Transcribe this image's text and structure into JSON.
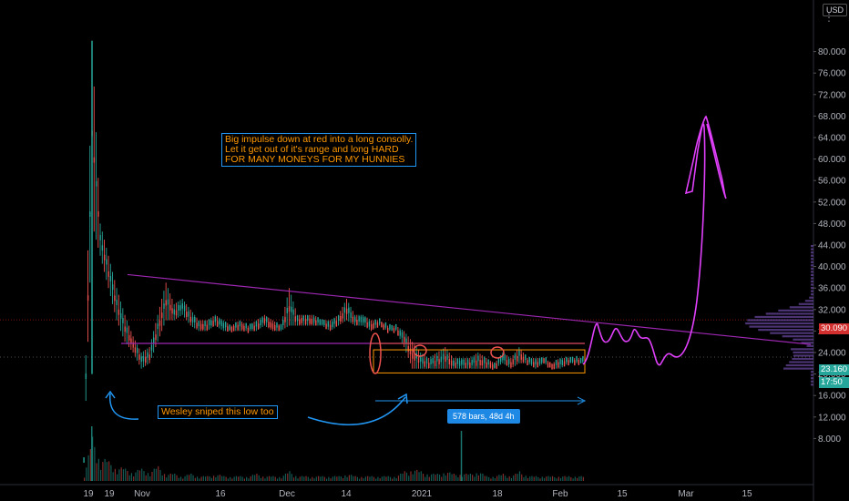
{
  "ui": {
    "currency": "USD",
    "last_price": "23.160",
    "countdown": "17:50",
    "line_price": "30.090",
    "range_stats": "578 bars, 48d 4h"
  },
  "annotations": {
    "main_note": "Big impulse down at red into a long consolly.\nLet it get out of it's range and long HARD\nFOR MANY MONEYS FOR MY HUNNIES",
    "low_note": "Wesley sniped this low too"
  },
  "colors": {
    "background": "#000000",
    "up": "#26a69a",
    "down": "#ef5350",
    "trendline": "#9c27b0",
    "projection": "#e040fb",
    "range_box": "#ff9800",
    "arrow": "#2196f3",
    "resistance": "#ef5350"
  },
  "chart_data": {
    "type": "candlestick",
    "y_axis": {
      "ticks": [
        "80.000",
        "76.000",
        "72.000",
        "68.000",
        "64.000",
        "60.000",
        "56.000",
        "52.000",
        "48.000",
        "44.000",
        "40.000",
        "36.000",
        "32.000",
        "28.000",
        "24.000",
        "20.000",
        "16.000",
        "12.000",
        "8.000"
      ],
      "min": 4,
      "max": 84
    },
    "x_axis": {
      "ticks": [
        "19",
        "19",
        "Nov",
        "16",
        "Dec",
        "14",
        "2021",
        "18",
        "Feb",
        "15",
        "Mar",
        "15"
      ]
    },
    "price_path": [
      [
        0,
        4,
        4
      ],
      [
        1,
        82,
        48
      ],
      [
        2,
        48,
        42
      ],
      [
        3,
        42,
        36
      ],
      [
        4,
        36,
        30
      ],
      [
        5,
        31,
        26
      ],
      [
        6,
        27,
        24
      ],
      [
        7,
        24,
        21
      ],
      [
        8,
        25,
        22
      ],
      [
        9,
        31,
        26
      ],
      [
        10,
        37,
        30
      ],
      [
        11,
        33,
        30
      ],
      [
        12,
        34,
        31
      ],
      [
        13,
        32,
        29
      ],
      [
        14,
        30,
        28
      ],
      [
        15,
        30,
        28
      ],
      [
        16,
        31,
        29
      ],
      [
        17,
        30,
        28
      ],
      [
        18,
        29,
        28
      ],
      [
        19,
        30,
        28
      ],
      [
        20,
        29,
        28
      ],
      [
        21,
        30,
        28
      ],
      [
        22,
        31,
        29
      ],
      [
        23,
        30,
        28
      ],
      [
        24,
        29,
        28
      ],
      [
        25,
        36,
        29
      ],
      [
        26,
        31,
        29
      ],
      [
        27,
        31,
        29
      ],
      [
        28,
        31,
        29
      ],
      [
        29,
        30,
        29
      ],
      [
        30,
        30,
        28
      ],
      [
        31,
        31,
        29
      ],
      [
        32,
        34,
        30
      ],
      [
        33,
        31,
        29
      ],
      [
        34,
        31,
        29
      ],
      [
        35,
        30,
        28
      ],
      [
        36,
        30,
        29
      ],
      [
        37,
        29,
        28
      ],
      [
        38,
        29,
        28
      ],
      [
        39,
        28,
        25
      ],
      [
        40,
        26,
        21
      ],
      [
        41,
        24,
        21
      ],
      [
        42,
        23,
        21
      ],
      [
        43,
        24,
        21
      ],
      [
        44,
        25,
        21
      ],
      [
        45,
        23,
        21
      ],
      [
        46,
        23,
        21
      ],
      [
        47,
        23,
        21
      ],
      [
        48,
        24,
        21
      ],
      [
        49,
        23,
        21
      ],
      [
        50,
        22,
        21
      ],
      [
        51,
        24,
        22
      ],
      [
        52,
        23,
        21
      ],
      [
        53,
        25,
        22
      ],
      [
        54,
        23,
        22
      ],
      [
        55,
        23,
        21
      ],
      [
        56,
        23,
        22
      ],
      [
        57,
        22,
        21
      ],
      [
        58,
        23,
        21
      ],
      [
        59,
        23,
        22
      ],
      [
        60,
        23,
        22
      ],
      [
        61,
        23,
        22
      ]
    ],
    "volume_path": [
      [
        0,
        3
      ],
      [
        1,
        18
      ],
      [
        2,
        10
      ],
      [
        3,
        8
      ],
      [
        4,
        6
      ],
      [
        5,
        5
      ],
      [
        6,
        4
      ],
      [
        7,
        5
      ],
      [
        8,
        4
      ],
      [
        9,
        6
      ],
      [
        10,
        3
      ],
      [
        11,
        3
      ],
      [
        12,
        2
      ],
      [
        13,
        3
      ],
      [
        14,
        2
      ],
      [
        15,
        2
      ],
      [
        16,
        3
      ],
      [
        17,
        2
      ],
      [
        18,
        2
      ],
      [
        19,
        2
      ],
      [
        20,
        2
      ],
      [
        21,
        3
      ],
      [
        22,
        2
      ],
      [
        23,
        2
      ],
      [
        24,
        2
      ],
      [
        25,
        4
      ],
      [
        26,
        2
      ],
      [
        27,
        2
      ],
      [
        28,
        2
      ],
      [
        29,
        2
      ],
      [
        30,
        2
      ],
      [
        31,
        2
      ],
      [
        32,
        3
      ],
      [
        33,
        2
      ],
      [
        34,
        2
      ],
      [
        35,
        2
      ],
      [
        36,
        2
      ],
      [
        37,
        2
      ],
      [
        38,
        2
      ],
      [
        39,
        4
      ],
      [
        40,
        5
      ],
      [
        41,
        4
      ],
      [
        42,
        3
      ],
      [
        43,
        3
      ],
      [
        44,
        4
      ],
      [
        45,
        3
      ],
      [
        46,
        3
      ],
      [
        47,
        3
      ],
      [
        48,
        4
      ],
      [
        49,
        2
      ],
      [
        50,
        2
      ],
      [
        51,
        3
      ],
      [
        52,
        2
      ],
      [
        53,
        4
      ],
      [
        54,
        2
      ],
      [
        55,
        2
      ],
      [
        56,
        2
      ],
      [
        57,
        2
      ],
      [
        58,
        2
      ],
      [
        59,
        2
      ],
      [
        60,
        2
      ],
      [
        61,
        2
      ]
    ],
    "trendline": {
      "from": [
        13.5,
        38.5
      ],
      "to": [
        88,
        25.6
      ]
    },
    "support": {
      "from": [
        13.2,
        25.7
      ],
      "to": [
        64,
        25.7
      ]
    },
    "range_box": {
      "price_top": 24.5,
      "price_bottom": 20.2
    },
    "resistance_marks": [
      40.8,
      46,
      54.5
    ]
  }
}
